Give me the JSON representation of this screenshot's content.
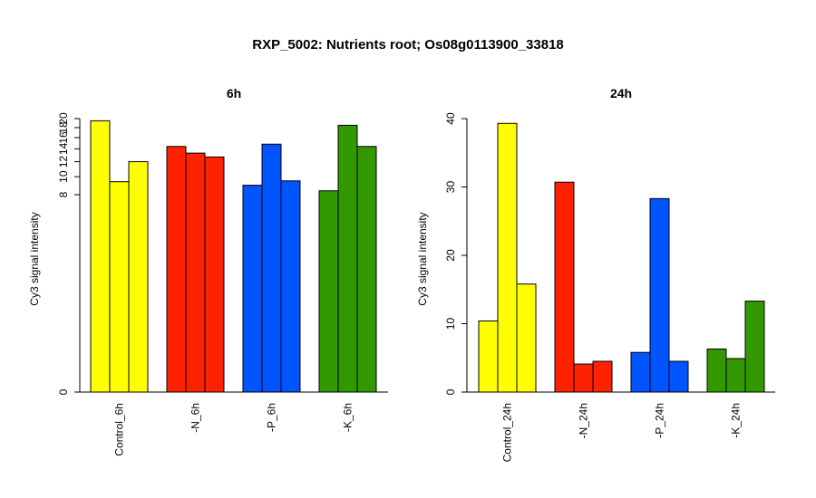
{
  "figure": {
    "title": "RXP_5002: Nutrients root; Os08g0113900_33818"
  },
  "colors": {
    "control": "#FFFF00",
    "N": "#FF2200",
    "P": "#0055FF",
    "K": "#339900"
  },
  "chart_data": [
    {
      "type": "bar",
      "title": "6h",
      "ylabel": "Cy3 signal intensity",
      "ylim": [
        0,
        20
      ],
      "y_scale": "log(1+y)",
      "yticks": [
        0,
        8,
        10,
        12,
        14,
        16,
        18,
        20
      ],
      "categories": [
        "Control_6h",
        "-N_6h",
        "-P_6h",
        "-K_6h"
      ],
      "group_colors": [
        "control",
        "N",
        "P",
        "K"
      ],
      "values": [
        [
          19.5,
          9.4,
          12.0
        ],
        [
          14.4,
          13.3,
          12.7
        ],
        [
          9.0,
          14.8,
          9.5
        ],
        [
          8.4,
          18.5,
          14.4
        ]
      ]
    },
    {
      "type": "bar",
      "title": "24h",
      "ylabel": "Cy3 signal intensity",
      "ylim": [
        0,
        40
      ],
      "y_scale": "linear",
      "yticks": [
        0,
        10,
        20,
        30,
        40
      ],
      "categories": [
        "Control_24h",
        "-N_24h",
        "-P_24h",
        "-K_24h"
      ],
      "group_colors": [
        "control",
        "N",
        "P",
        "K"
      ],
      "values": [
        [
          10.4,
          39.3,
          15.8
        ],
        [
          30.7,
          4.1,
          4.5
        ],
        [
          5.8,
          28.3,
          4.5
        ],
        [
          6.3,
          4.9,
          13.3
        ]
      ]
    }
  ]
}
